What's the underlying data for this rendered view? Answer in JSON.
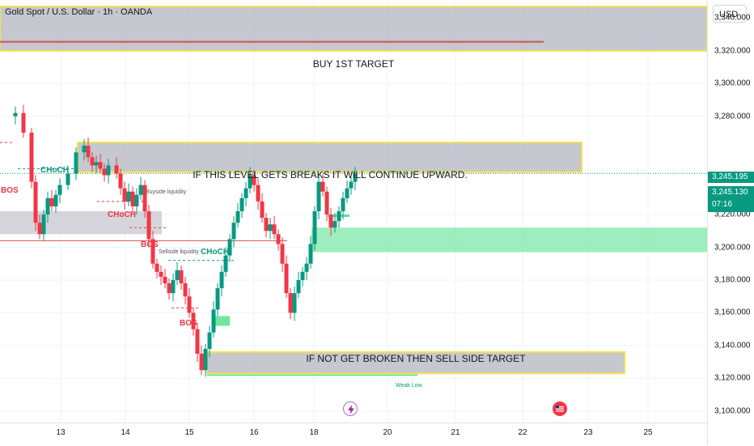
{
  "header": {
    "title": "Gold Spot / U.S. Dollar · 1h · OANDA"
  },
  "price_axis": {
    "currency_label": "USD",
    "ticks": [
      "3,340.000",
      "3,320.000",
      "3,300.000",
      "3,280.000",
      "3,220.000",
      "3,200.000",
      "3,180.000",
      "3,160.000",
      "3,140.000",
      "3,120.000",
      "3,100.000"
    ],
    "last_price": "3,245.195",
    "current_price": "3,245.130",
    "countdown": "07:16"
  },
  "time_axis": {
    "ticks": [
      "13",
      "14",
      "15",
      "16",
      "18",
      "20",
      "21",
      "22",
      "23",
      "25"
    ]
  },
  "zones": {
    "buy_target": "BUY 1ST TARGET",
    "break_level": "IF THIS LEVEL GETS BREAKS IT WILL CONTINUE UPWARD.",
    "sell_target": "IF NOT GET BROKEN THEN SELL SIDE TARGET"
  },
  "markers": {
    "choch_1": "CHoCH",
    "choch_2": "CHoCH",
    "choch_3": "CHoCH",
    "bos_1": "BOS",
    "bos_2": "BOS",
    "bos_3": "BOS",
    "sellside_liquidity": "Sellside liquidity",
    "buyside_liquidity": "Buyside liquidity",
    "weak_low": "Weak Low"
  },
  "colors": {
    "bull": "#089981",
    "bear": "#f23645",
    "zone_gray": "#b2b5be",
    "zone_border": "#f5e04b",
    "green_zone": "#4ee087"
  },
  "chart_data": {
    "type": "candlestick",
    "title": "Gold Spot / U.S. Dollar · 1h · OANDA",
    "x_ticks": [
      "13",
      "14",
      "15",
      "16",
      "18",
      "20",
      "21",
      "22",
      "23",
      "25"
    ],
    "y_ticks": [
      3340,
      3320,
      3300,
      3280,
      3220,
      3200,
      3180,
      3160,
      3140,
      3120,
      3100
    ],
    "ylim": [
      3093,
      3351
    ],
    "last_price": 3245.13,
    "close_path": [
      [
        0,
        3280
      ],
      [
        1.5,
        3282
      ],
      [
        2.5,
        3270
      ],
      [
        3.5,
        3240
      ],
      [
        4,
        3215
      ],
      [
        4.5,
        3208
      ],
      [
        5,
        3220
      ],
      [
        5.5,
        3230
      ],
      [
        6,
        3225
      ],
      [
        6.5,
        3232
      ],
      [
        7,
        3238
      ],
      [
        8,
        3245
      ],
      [
        9,
        3258
      ],
      [
        10,
        3262
      ],
      [
        10.5,
        3255
      ],
      [
        11,
        3250
      ],
      [
        11.5,
        3252
      ],
      [
        12,
        3248
      ],
      [
        12.5,
        3244
      ],
      [
        13,
        3250
      ],
      [
        14,
        3245
      ],
      [
        14.5,
        3236
      ],
      [
        15,
        3228
      ],
      [
        15.5,
        3234
      ],
      [
        16,
        3225
      ],
      [
        16.5,
        3232
      ],
      [
        17,
        3238
      ],
      [
        17.5,
        3222
      ],
      [
        18,
        3205
      ],
      [
        18.5,
        3190
      ],
      [
        19,
        3185
      ],
      [
        19.5,
        3182
      ],
      [
        20,
        3178
      ],
      [
        20.5,
        3172
      ],
      [
        21,
        3180
      ],
      [
        21.5,
        3186
      ],
      [
        22,
        3178
      ],
      [
        22.5,
        3170
      ],
      [
        23,
        3160
      ],
      [
        23.5,
        3150
      ],
      [
        24,
        3135
      ],
      [
        24.5,
        3125
      ],
      [
        25,
        3138
      ],
      [
        25.5,
        3148
      ],
      [
        26,
        3162
      ],
      [
        26.5,
        3175
      ],
      [
        27,
        3185
      ],
      [
        27.5,
        3195
      ],
      [
        28,
        3205
      ],
      [
        28.5,
        3215
      ],
      [
        29,
        3222
      ],
      [
        29.5,
        3230
      ],
      [
        30,
        3236
      ],
      [
        30.5,
        3244
      ],
      [
        31,
        3238
      ],
      [
        31.5,
        3228
      ],
      [
        32,
        3218
      ],
      [
        32.5,
        3210
      ],
      [
        33,
        3214
      ],
      [
        33.5,
        3208
      ],
      [
        34,
        3202
      ],
      [
        34.5,
        3190
      ],
      [
        35,
        3172
      ],
      [
        35.5,
        3160
      ],
      [
        36,
        3172
      ],
      [
        36.5,
        3180
      ],
      [
        37,
        3185
      ],
      [
        37.5,
        3190
      ],
      [
        38,
        3202
      ],
      [
        38.5,
        3222
      ],
      [
        39,
        3240
      ],
      [
        39.5,
        3234
      ],
      [
        40,
        3220
      ],
      [
        40.5,
        3212
      ],
      [
        41,
        3216
      ],
      [
        41.5,
        3222
      ],
      [
        42,
        3230
      ],
      [
        42.5,
        3236
      ],
      [
        43,
        3240
      ],
      [
        43.5,
        3245
      ]
    ],
    "zones": [
      {
        "label": "BUY 1ST TARGET",
        "y1": 3347,
        "y2": 3320
      },
      {
        "label": "IF THIS LEVEL GETS BREAKS IT WILL CONTINUE UPWARD.",
        "y1": 3264,
        "y2": 3246
      },
      {
        "label": "IF NOT GET BROKEN THEN SELL SIDE TARGET",
        "y1": 3136,
        "y2": 3123
      },
      {
        "label": "",
        "y1": 3212,
        "y2": 3197
      }
    ]
  }
}
